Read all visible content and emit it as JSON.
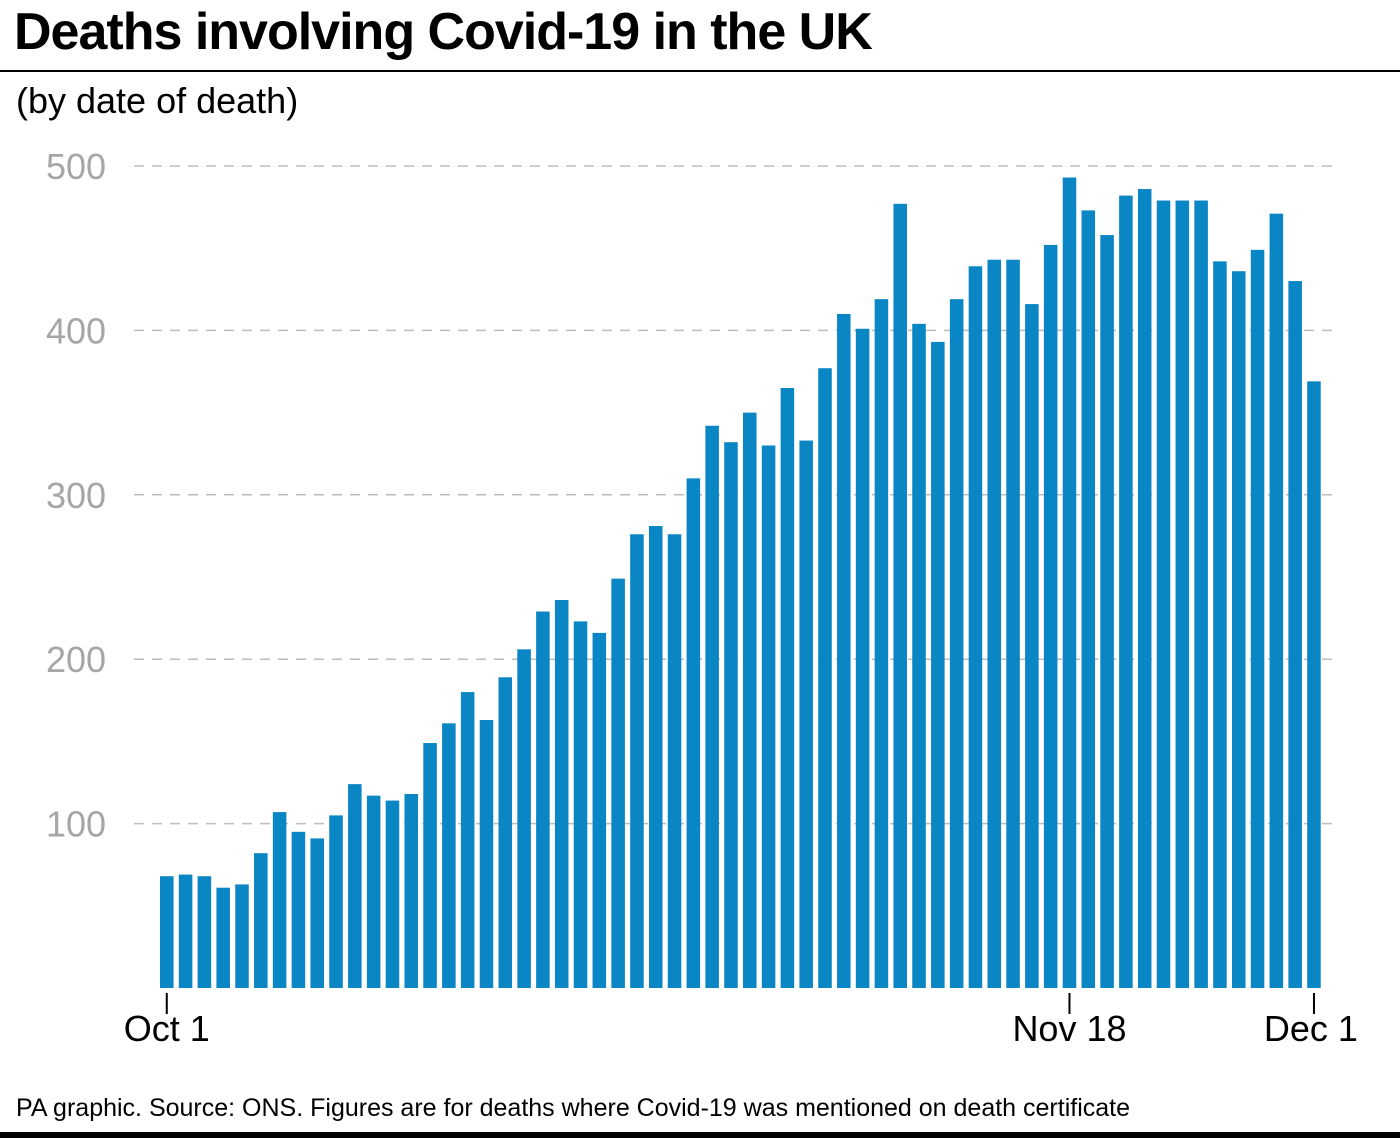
{
  "title": "Deaths involving Covid-19 in the UK",
  "subtitle": "(by date of death)",
  "footer": "PA graphic. Source: ONS. Figures are for deaths where Covid-19 was mentioned on death certificate",
  "colors": {
    "bar": "#0a86c4",
    "grid": "#bdbdbd",
    "axis_text": "#a6a6a6"
  },
  "chart_data": {
    "type": "bar",
    "ylim": [
      0,
      500
    ],
    "yticks": [
      "100",
      "200",
      "300",
      "400",
      "500"
    ],
    "grid": "dashed horizontal",
    "x_tick_labels": [
      {
        "label": "Oct 1",
        "index": 0
      },
      {
        "label": "Nov 18",
        "index": 48
      },
      {
        "label": "Dec 1",
        "index": 61
      }
    ],
    "categories": [
      "Oct 1",
      "Oct 2",
      "Oct 3",
      "Oct 4",
      "Oct 5",
      "Oct 6",
      "Oct 7",
      "Oct 8",
      "Oct 9",
      "Oct 10",
      "Oct 11",
      "Oct 12",
      "Oct 13",
      "Oct 14",
      "Oct 15",
      "Oct 16",
      "Oct 17",
      "Oct 18",
      "Oct 19",
      "Oct 20",
      "Oct 21",
      "Oct 22",
      "Oct 23",
      "Oct 24",
      "Oct 25",
      "Oct 26",
      "Oct 27",
      "Oct 28",
      "Oct 29",
      "Oct 30",
      "Oct 31",
      "Nov 1",
      "Nov 2",
      "Nov 3",
      "Nov 4",
      "Nov 5",
      "Nov 6",
      "Nov 7",
      "Nov 8",
      "Nov 9",
      "Nov 10",
      "Nov 11",
      "Nov 12",
      "Nov 13",
      "Nov 14",
      "Nov 15",
      "Nov 16",
      "Nov 17",
      "Nov 18",
      "Nov 19",
      "Nov 20",
      "Nov 21",
      "Nov 22",
      "Nov 23",
      "Nov 24",
      "Nov 25",
      "Nov 26",
      "Nov 27",
      "Nov 28",
      "Nov 29",
      "Nov 30",
      "Dec 1"
    ],
    "values": [
      68,
      69,
      68,
      61,
      63,
      82,
      107,
      95,
      91,
      105,
      124,
      117,
      114,
      118,
      149,
      161,
      180,
      163,
      189,
      206,
      229,
      236,
      223,
      216,
      249,
      276,
      281,
      276,
      310,
      342,
      332,
      350,
      330,
      365,
      333,
      377,
      410,
      401,
      419,
      477,
      404,
      393,
      419,
      439,
      443,
      443,
      416,
      452,
      493,
      473,
      458,
      482,
      486,
      479,
      479,
      479,
      442,
      436,
      449,
      471,
      430,
      369
    ]
  }
}
